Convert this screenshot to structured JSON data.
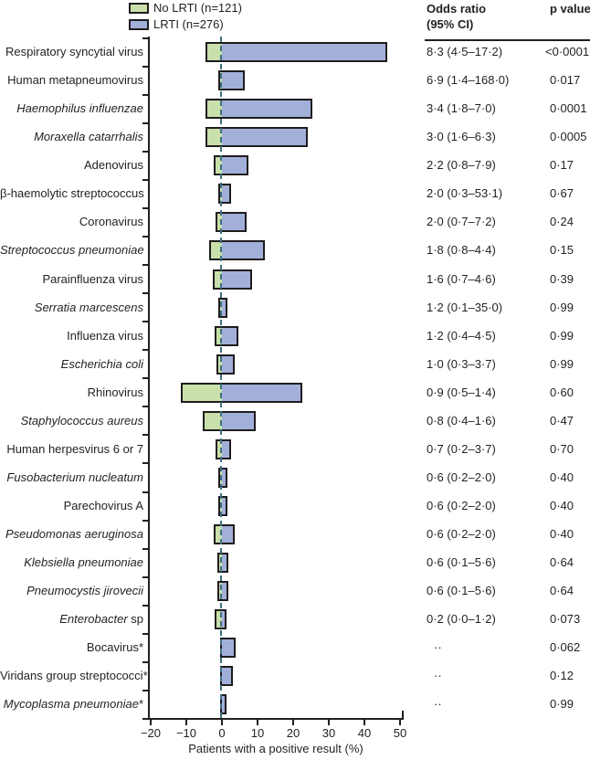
{
  "legend": {
    "items": [
      {
        "label": "No LRTI (n=121)",
        "color": "#c9e0ab"
      },
      {
        "label": "LRTI (n=276)",
        "color": "#a2b0d9"
      }
    ]
  },
  "columns": {
    "odds_ratio_line1": "Odds ratio",
    "odds_ratio_line2": "(95% CI)",
    "p_value": "p value"
  },
  "chart_data": {
    "type": "bar",
    "orientation": "horizontal-diverging",
    "title": "",
    "xlabel": "Patients with a positive result (%)",
    "xlim": [
      -20,
      50
    ],
    "grid": false,
    "legend_position": "top",
    "zero_line_color": "#3e7080",
    "bar_border_color": "#1f1c1d",
    "series": [
      {
        "name": "No LRTI (n=121)",
        "color": "#c9e0ab",
        "direction": "left"
      },
      {
        "name": "LRTI (n=276)",
        "color": "#a2b0d9",
        "direction": "right"
      }
    ],
    "x_ticks": [
      {
        "v": -20,
        "label": "−20"
      },
      {
        "v": -10,
        "label": "−10"
      },
      {
        "v": 0,
        "label": "0"
      },
      {
        "v": 10,
        "label": "10"
      },
      {
        "v": 20,
        "label": "20"
      },
      {
        "v": 30,
        "label": "30"
      },
      {
        "v": 40,
        "label": "40"
      },
      {
        "v": 50,
        "label": "50"
      }
    ],
    "rows": [
      {
        "label": "Respiratory syncytial virus",
        "italic": false,
        "suffix": "",
        "no_lrti_pct": 4.0,
        "lrti_pct": 46.0,
        "odds_ratio": "8·3 (4·5–17·2)",
        "p_value": "<0·0001"
      },
      {
        "label": "Human metapneumovirus",
        "italic": false,
        "suffix": "",
        "no_lrti_pct": 0.5,
        "lrti_pct": 6.0,
        "odds_ratio": "6·9 (1·4–168·0)",
        "p_value": "0·017"
      },
      {
        "label": "Haemophilus influenzae",
        "italic": true,
        "suffix": "",
        "no_lrti_pct": 4.0,
        "lrti_pct": 25.0,
        "odds_ratio": "3·4 (1·8–7·0)",
        "p_value": "0·0001"
      },
      {
        "label": "Moraxella catarrhalis",
        "italic": true,
        "suffix": "",
        "no_lrti_pct": 4.0,
        "lrti_pct": 23.5,
        "odds_ratio": "3·0 (1·6–6·3)",
        "p_value": "0·0005"
      },
      {
        "label": "Adenovirus",
        "italic": false,
        "suffix": "",
        "no_lrti_pct": 1.7,
        "lrti_pct": 7.0,
        "odds_ratio": "2·2 (0·8–7·9)",
        "p_value": "0·17"
      },
      {
        "label": "β-haemolytic streptococcus",
        "italic": false,
        "suffix": "",
        "no_lrti_pct": 0.6,
        "lrti_pct": 2.0,
        "odds_ratio": "2·0 (0·3–53·1)",
        "p_value": "0·67"
      },
      {
        "label": "Coronavirus",
        "italic": false,
        "suffix": "",
        "no_lrti_pct": 1.4,
        "lrti_pct": 6.3,
        "odds_ratio": "2·0 (0·7–7·2)",
        "p_value": "0·24"
      },
      {
        "label": "Streptococcus pneumoniae",
        "italic": true,
        "suffix": "",
        "no_lrti_pct": 3.0,
        "lrti_pct": 11.5,
        "odds_ratio": "1·8 (0·8–4·4)",
        "p_value": "0·15"
      },
      {
        "label": "Parainfluenza virus",
        "italic": false,
        "suffix": "",
        "no_lrti_pct": 2.0,
        "lrti_pct": 8.0,
        "odds_ratio": "1·6 (0·7–4·6)",
        "p_value": "0·39"
      },
      {
        "label": "Serratia marcescens",
        "italic": true,
        "suffix": "",
        "no_lrti_pct": 0.5,
        "lrti_pct": 1.0,
        "odds_ratio": "1·2 (0·1–35·0)",
        "p_value": "0·99"
      },
      {
        "label": "Influenza virus",
        "italic": false,
        "suffix": "",
        "no_lrti_pct": 1.5,
        "lrti_pct": 4.0,
        "odds_ratio": "1·2 (0·4–4·5)",
        "p_value": "0·99"
      },
      {
        "label": "Escherichia coli",
        "italic": true,
        "suffix": "",
        "no_lrti_pct": 1.0,
        "lrti_pct": 3.0,
        "odds_ratio": "1·0 (0·3–3·7)",
        "p_value": "0·99"
      },
      {
        "label": "Rhinovirus",
        "italic": false,
        "suffix": "",
        "no_lrti_pct": 11.0,
        "lrti_pct": 22.0,
        "odds_ratio": "0·9 (0·5–1·4)",
        "p_value": "0·60"
      },
      {
        "label": "Staphylococcus aureus",
        "italic": true,
        "suffix": "",
        "no_lrti_pct": 5.0,
        "lrti_pct": 9.0,
        "odds_ratio": "0·8 (0·4–1·6)",
        "p_value": "0·47"
      },
      {
        "label": "Human herpesvirus 6 or 7",
        "italic": false,
        "suffix": "",
        "no_lrti_pct": 1.2,
        "lrti_pct": 2.0,
        "odds_ratio": "0·7 (0·2–3·7)",
        "p_value": "0·70"
      },
      {
        "label": "Fusobacterium nucleatum",
        "italic": true,
        "suffix": "",
        "no_lrti_pct": 0.5,
        "lrti_pct": 1.0,
        "odds_ratio": "0·6 (0·2–2·0)",
        "p_value": "0·40"
      },
      {
        "label": "Parechovirus A",
        "italic": false,
        "suffix": "",
        "no_lrti_pct": 0.5,
        "lrti_pct": 1.0,
        "odds_ratio": "0·6 (0·2–2·0)",
        "p_value": "0·40"
      },
      {
        "label": "Pseudomonas aeruginosa",
        "italic": true,
        "suffix": "",
        "no_lrti_pct": 1.9,
        "lrti_pct": 3.2,
        "odds_ratio": "0·6 (0·2–2·0)",
        "p_value": "0·40"
      },
      {
        "label": "Klebsiella pneumoniae",
        "italic": true,
        "suffix": "",
        "no_lrti_pct": 0.8,
        "lrti_pct": 1.2,
        "odds_ratio": "0·6 (0·1–5·6)",
        "p_value": "0·64"
      },
      {
        "label": "Pneumocystis jirovecii",
        "italic": true,
        "suffix": "",
        "no_lrti_pct": 0.8,
        "lrti_pct": 1.2,
        "odds_ratio": "0·6 (0·1–5·6)",
        "p_value": "0·64"
      },
      {
        "label": "Enterobacter",
        "italic": true,
        "suffix": " sp",
        "no_lrti_pct": 1.6,
        "lrti_pct": 0.8,
        "odds_ratio": "0·2 (0·0–1·2)",
        "p_value": "0·073"
      },
      {
        "label": "Bocavirus*",
        "italic": false,
        "suffix": "",
        "no_lrti_pct": 0.0,
        "lrti_pct": 3.3,
        "odds_ratio": "··",
        "p_value": "0·062"
      },
      {
        "label": "Viridans group streptococci*",
        "italic": false,
        "suffix": "",
        "no_lrti_pct": 0.0,
        "lrti_pct": 2.5,
        "odds_ratio": "··",
        "p_value": "0·12"
      },
      {
        "label": "Mycoplasma pneumoniae",
        "italic": true,
        "suffix": "*",
        "no_lrti_pct": 0.0,
        "lrti_pct": 0.7,
        "odds_ratio": "··",
        "p_value": "0·99"
      }
    ]
  }
}
